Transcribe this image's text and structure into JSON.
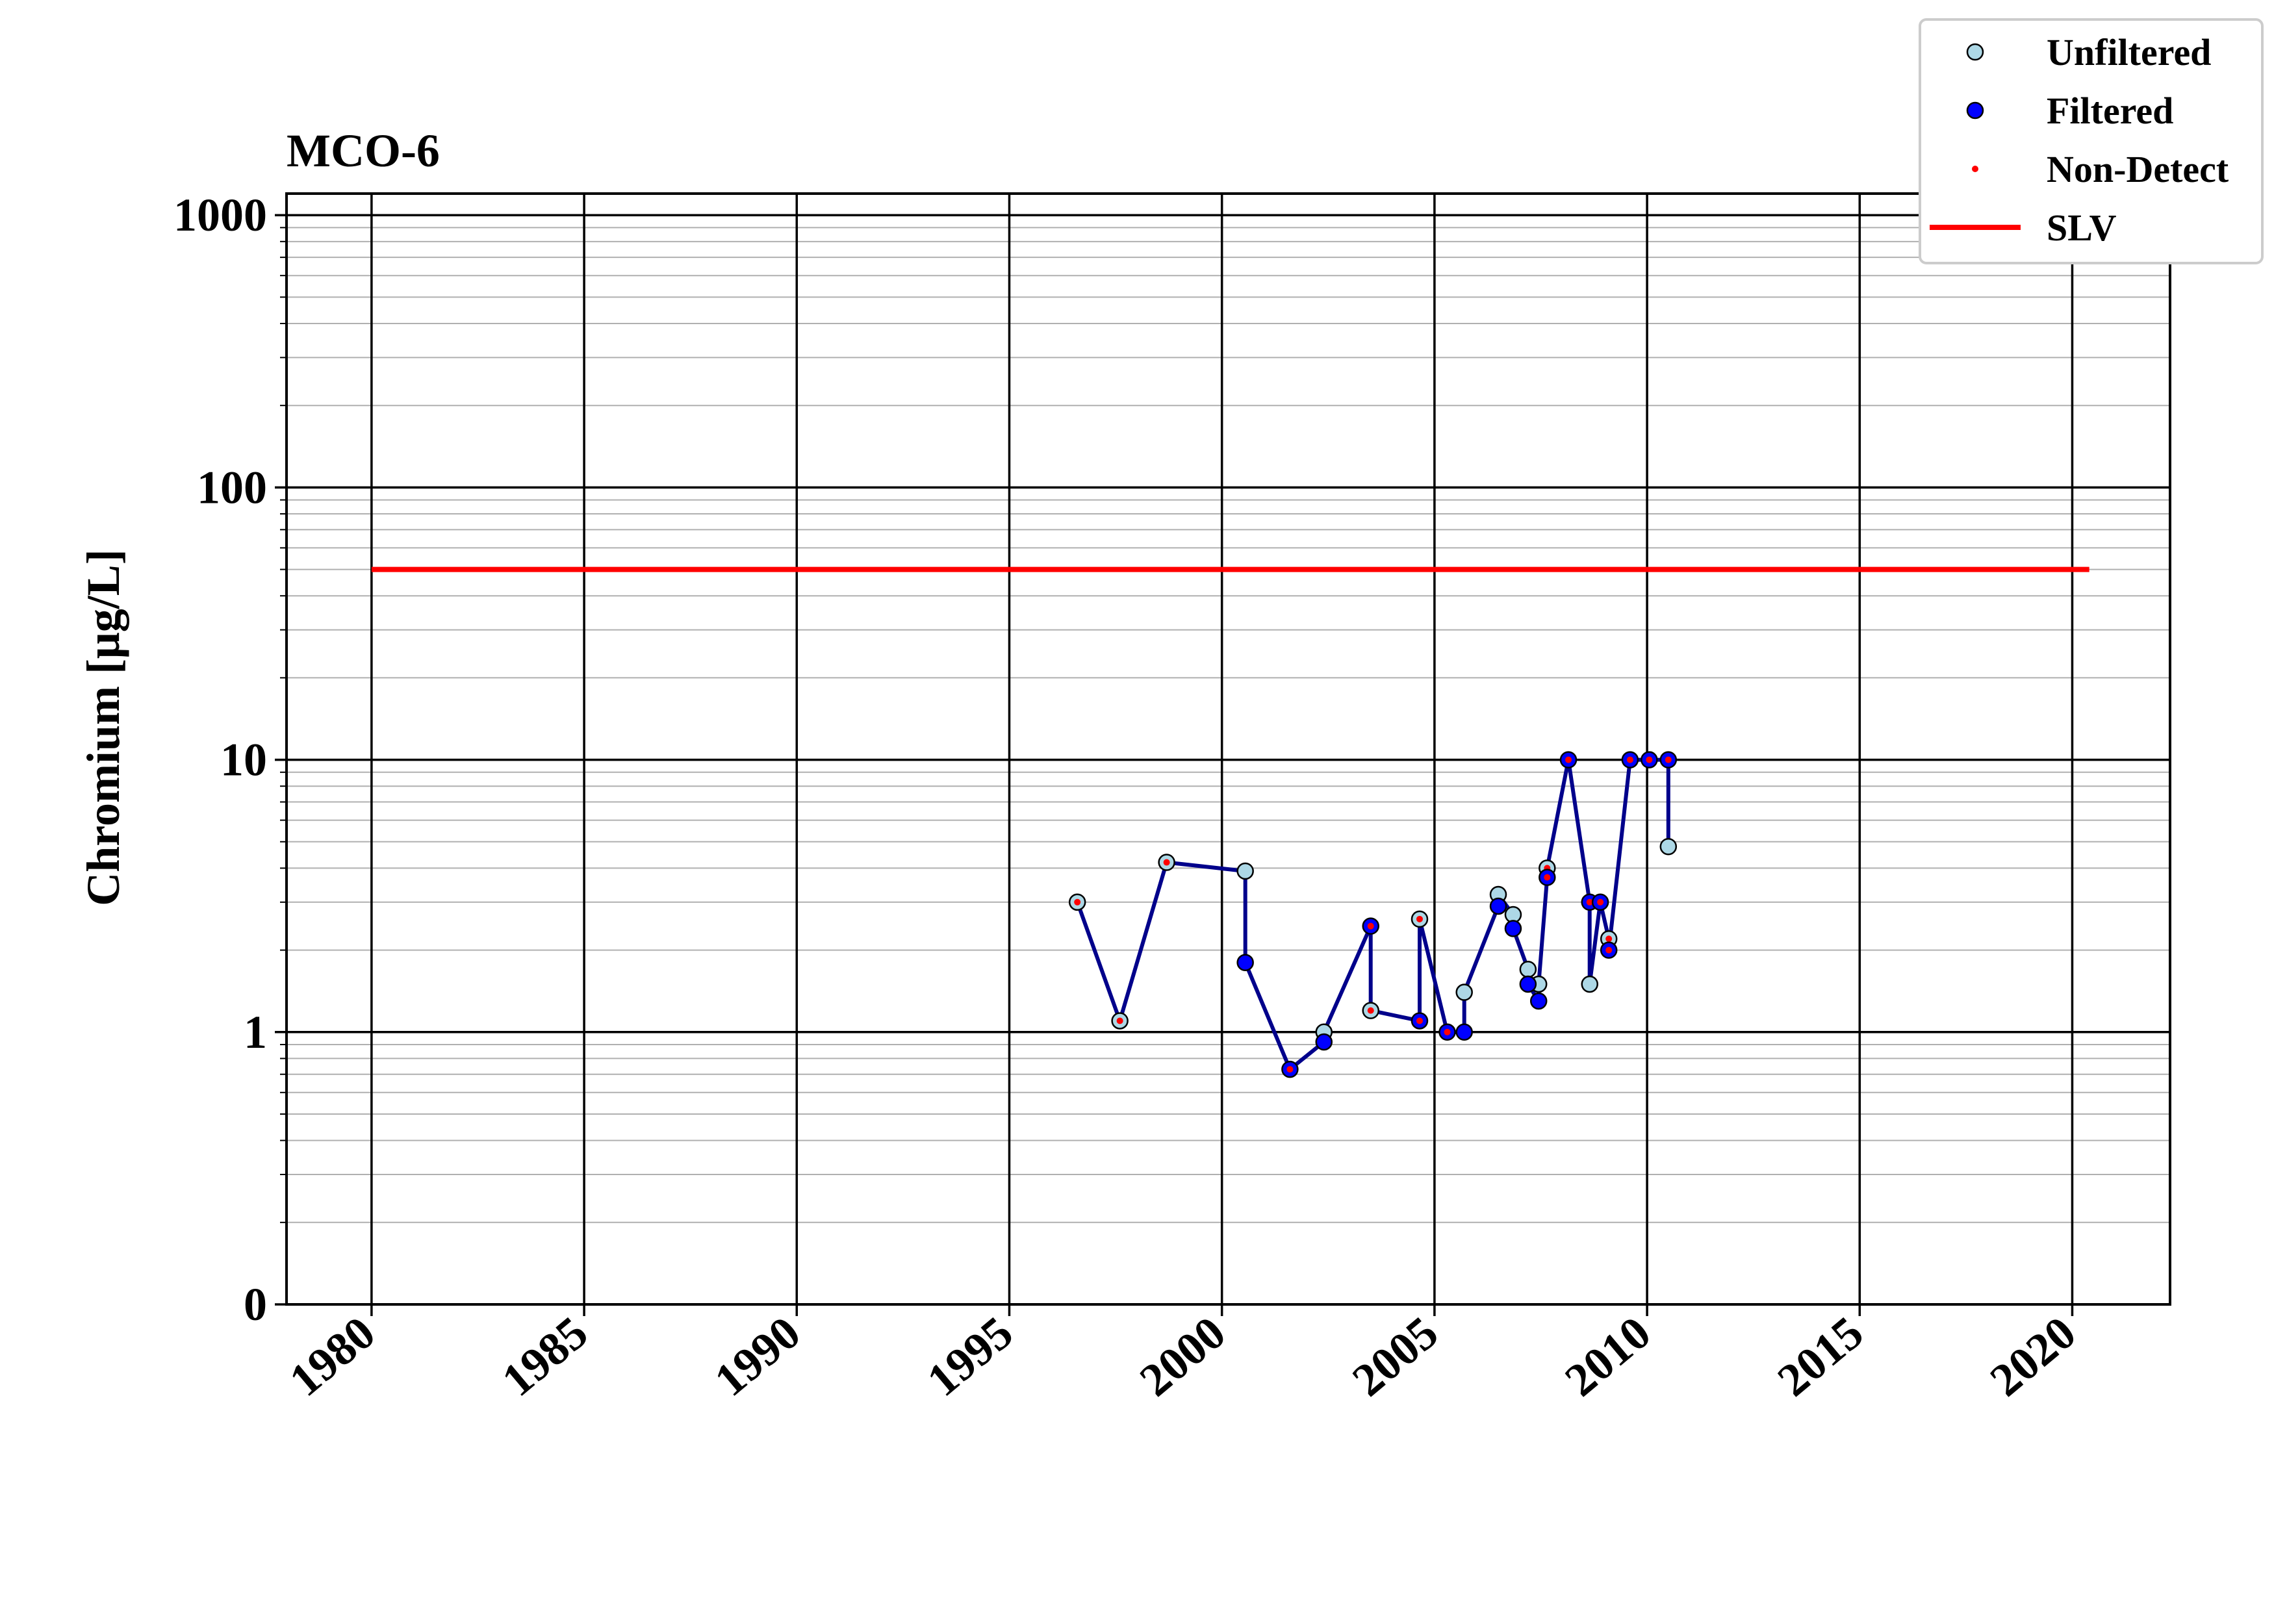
{
  "chart_data": {
    "type": "line",
    "title": "MCO-6",
    "ylabel": "Chromium [μg/L]",
    "xlabel": "",
    "yscale": "log",
    "x_range": [
      1978.0,
      2022.3
    ],
    "y_range": [
      0.1,
      1200
    ],
    "x_ticks": [
      "1980",
      "1985",
      "1990",
      "1995",
      "2000",
      "2005",
      "2010",
      "2015",
      "2020"
    ],
    "y_ticks": [
      {
        "value": 1000,
        "label": "1000"
      },
      {
        "value": 100,
        "label": "100"
      },
      {
        "value": 10,
        "label": "10"
      },
      {
        "value": 1,
        "label": "1"
      },
      {
        "value": 0.1,
        "label": "0"
      }
    ],
    "grid": true,
    "legend": {
      "placement": "top-right",
      "entries": [
        {
          "label": "Unfiltered",
          "kind": "marker",
          "color": "#add8e6"
        },
        {
          "label": "Filtered",
          "kind": "marker",
          "color": "#0000ff"
        },
        {
          "label": "Non-Detect",
          "kind": "dot",
          "color": "#ff0000"
        },
        {
          "label": "SLV",
          "kind": "line",
          "color": "#ff0000"
        }
      ]
    },
    "slv": {
      "name": "SLV",
      "value": 50,
      "x_start": 1980.0,
      "x_end": 2020.4,
      "color": "#ff0000"
    },
    "line_color": "#00008b",
    "series": [
      {
        "name": "Unfiltered",
        "color": "#add8e6",
        "points": [
          {
            "x": 1996.6,
            "y": 3.0,
            "nd": true
          },
          {
            "x": 1997.6,
            "y": 1.1,
            "nd": true
          },
          {
            "x": 1998.7,
            "y": 4.2,
            "nd": true
          },
          {
            "x": 2000.55,
            "y": 3.9,
            "nd": false
          },
          {
            "x": 2002.4,
            "y": 1.0,
            "nd": false
          },
          {
            "x": 2003.5,
            "y": 1.2,
            "nd": true
          },
          {
            "x": 2004.65,
            "y": 2.6,
            "nd": true
          },
          {
            "x": 2005.7,
            "y": 1.4,
            "nd": false
          },
          {
            "x": 2006.5,
            "y": 3.2,
            "nd": false
          },
          {
            "x": 2006.85,
            "y": 2.7,
            "nd": false
          },
          {
            "x": 2007.2,
            "y": 1.7,
            "nd": false
          },
          {
            "x": 2007.45,
            "y": 1.5,
            "nd": false
          },
          {
            "x": 2007.65,
            "y": 4.0,
            "nd": true
          },
          {
            "x": 2008.65,
            "y": 1.5,
            "nd": false
          },
          {
            "x": 2009.1,
            "y": 2.2,
            "nd": true
          },
          {
            "x": 2010.5,
            "y": 4.8,
            "nd": false
          }
        ]
      },
      {
        "name": "Filtered",
        "color": "#0000ff",
        "points": [
          {
            "x": 2000.55,
            "y": 1.8,
            "nd": false
          },
          {
            "x": 2001.6,
            "y": 0.73,
            "nd": true
          },
          {
            "x": 2002.4,
            "y": 0.92,
            "nd": false
          },
          {
            "x": 2003.5,
            "y": 2.45,
            "nd": true
          },
          {
            "x": 2004.65,
            "y": 1.1,
            "nd": true
          },
          {
            "x": 2005.3,
            "y": 1.0,
            "nd": true
          },
          {
            "x": 2005.7,
            "y": 1.0,
            "nd": false
          },
          {
            "x": 2006.5,
            "y": 2.9,
            "nd": false
          },
          {
            "x": 2006.85,
            "y": 2.4,
            "nd": false
          },
          {
            "x": 2007.2,
            "y": 1.5,
            "nd": false
          },
          {
            "x": 2007.45,
            "y": 1.3,
            "nd": false
          },
          {
            "x": 2007.65,
            "y": 3.7,
            "nd": true
          },
          {
            "x": 2008.15,
            "y": 10.0,
            "nd": true
          },
          {
            "x": 2008.65,
            "y": 3.0,
            "nd": true
          },
          {
            "x": 2008.9,
            "y": 3.0,
            "nd": true
          },
          {
            "x": 2009.1,
            "y": 2.0,
            "nd": true
          },
          {
            "x": 2009.6,
            "y": 10.0,
            "nd": true
          },
          {
            "x": 2010.05,
            "y": 10.0,
            "nd": true
          },
          {
            "x": 2010.5,
            "y": 10.0,
            "nd": true
          }
        ]
      }
    ],
    "connected_path": [
      [
        1996.6,
        3.0
      ],
      [
        1997.6,
        1.1
      ],
      [
        1998.7,
        4.2
      ],
      [
        2000.55,
        3.9
      ],
      [
        2000.55,
        1.8
      ],
      [
        2001.6,
        0.73
      ],
      [
        2002.4,
        0.92
      ],
      [
        2002.4,
        1.0
      ],
      [
        2003.5,
        2.45
      ],
      [
        2003.5,
        1.2
      ],
      [
        2004.65,
        1.1
      ],
      [
        2004.65,
        2.6
      ],
      [
        2005.3,
        1.0
      ],
      [
        2005.7,
        1.0
      ],
      [
        2005.7,
        1.4
      ],
      [
        2006.5,
        2.9
      ],
      [
        2006.5,
        3.2
      ],
      [
        2006.85,
        2.7
      ],
      [
        2006.85,
        2.4
      ],
      [
        2007.2,
        1.7
      ],
      [
        2007.2,
        1.5
      ],
      [
        2007.45,
        1.3
      ],
      [
        2007.45,
        1.5
      ],
      [
        2007.65,
        3.7
      ],
      [
        2007.65,
        4.0
      ],
      [
        2008.15,
        10.0
      ],
      [
        2008.65,
        3.0
      ],
      [
        2008.65,
        1.5
      ],
      [
        2008.9,
        3.0
      ],
      [
        2009.1,
        2.2
      ],
      [
        2009.1,
        2.0
      ],
      [
        2009.6,
        10.0
      ],
      [
        2010.05,
        10.0
      ],
      [
        2010.5,
        10.0
      ],
      [
        2010.5,
        4.8
      ]
    ]
  }
}
